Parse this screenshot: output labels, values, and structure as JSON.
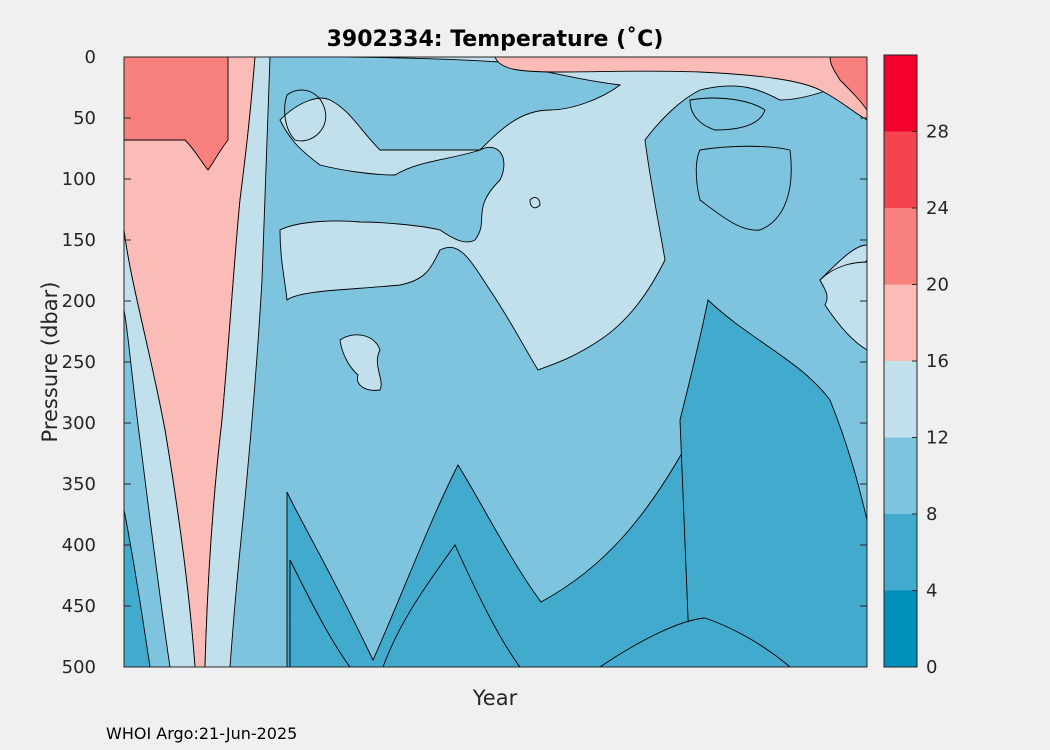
{
  "chart_data": {
    "type": "contour",
    "title": "3902334:  Temperature (˚C)",
    "xlabel": "Year",
    "ylabel": "Pressure (dbar)",
    "y_ticks": [
      0,
      50,
      100,
      150,
      200,
      250,
      300,
      350,
      400,
      450,
      500
    ],
    "ylim": [
      0,
      500
    ],
    "y_reversed": true,
    "colorbar": {
      "ticks": [
        0,
        4,
        8,
        12,
        16,
        20,
        24,
        28
      ],
      "range": [
        0,
        32
      ],
      "levels": [
        {
          "min": 0,
          "max": 4,
          "color": "#008fba"
        },
        {
          "min": 4,
          "max": 8,
          "color": "#41aacd"
        },
        {
          "min": 8,
          "max": 12,
          "color": "#7fc4de"
        },
        {
          "min": 12,
          "max": 16,
          "color": "#c2e0ec"
        },
        {
          "min": 16,
          "max": 20,
          "color": "#fbbcb8"
        },
        {
          "min": 20,
          "max": 24,
          "color": "#f8817d"
        },
        {
          "min": 24,
          "max": 28,
          "color": "#f4444f"
        },
        {
          "min": 28,
          "max": 32,
          "color": "#f3002d"
        }
      ]
    },
    "grid": false
  },
  "footer": "WHOI Argo:21-Jun-2025"
}
